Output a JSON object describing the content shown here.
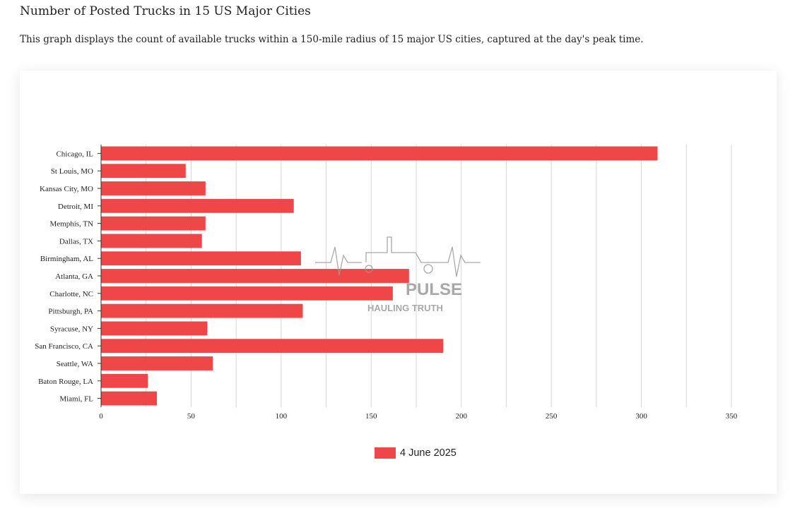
{
  "page": {
    "title": "Number of Posted Trucks in 15 US Major Cities",
    "description": "This graph displays the count of available trucks within a 150-mile radius of 15 major US cities, captured at the day's peak time."
  },
  "watermark": {
    "brand_fragment": "PULSE",
    "tagline": "HAULING TRUTH",
    "icon": "truck-heartbeat-icon"
  },
  "colors": {
    "bar": "#ef4747",
    "grid": "#d6d6d6",
    "axis": "#333333",
    "watermark": "#9a9a9a"
  },
  "chart_data": {
    "type": "bar",
    "orientation": "horizontal",
    "categories": [
      "Chicago, IL",
      "St Louis, MO",
      "Kansas City, MO",
      "Detroit, MI",
      "Memphis, TN",
      "Dallas, TX",
      "Birmingham, AL",
      "Atlanta, GA",
      "Charlotte, NC",
      "Pittsburgh, PA",
      "Syracuse, NY",
      "San Francisco, CA",
      "Seattle, WA",
      "Baton Rouge, LA",
      "Miami, FL"
    ],
    "series": [
      {
        "name": "4 June 2025",
        "values": [
          309,
          47,
          58,
          107,
          58,
          56,
          111,
          171,
          162,
          112,
          59,
          190,
          62,
          26,
          31
        ]
      }
    ],
    "xlim": [
      0,
      350
    ],
    "xticks": [
      0,
      50,
      100,
      150,
      200,
      250,
      300,
      350
    ],
    "grid": true,
    "legend_position": "bottom-center",
    "title": "",
    "xlabel": "",
    "ylabel": ""
  }
}
